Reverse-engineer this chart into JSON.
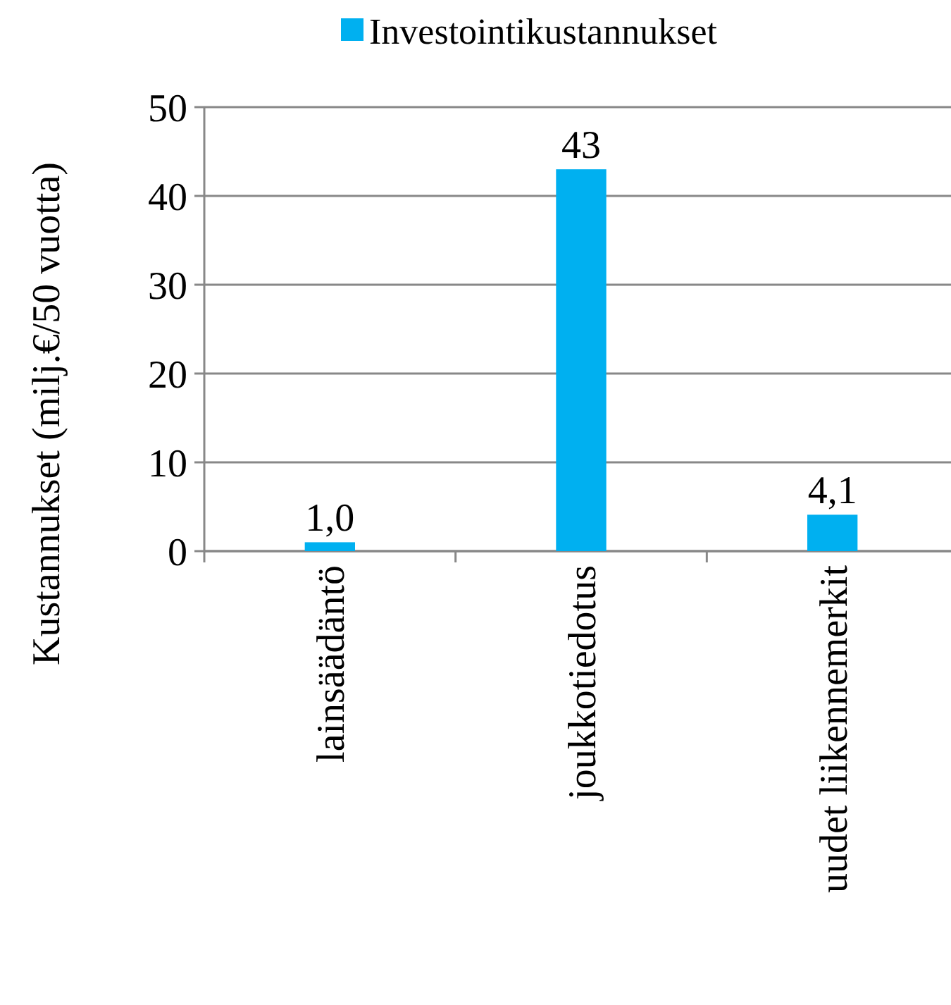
{
  "chart_data": {
    "type": "bar",
    "ylabel": "Kustannukset (milj.€/50 vuotta)",
    "categories": [
      "lainsäädäntö",
      "joukkotiedotus",
      "uudet liikennemerkit"
    ],
    "series": [
      {
        "name": "Investointikustannukset",
        "color": "#00b0f0",
        "values": [
          1.0,
          43,
          4.1
        ],
        "value_labels": [
          "1,0",
          "43",
          "4,1"
        ]
      }
    ],
    "ylim": [
      0,
      50
    ],
    "yticks": [
      0,
      10,
      20,
      30,
      40,
      50
    ],
    "grid": "y",
    "legend": "top"
  }
}
